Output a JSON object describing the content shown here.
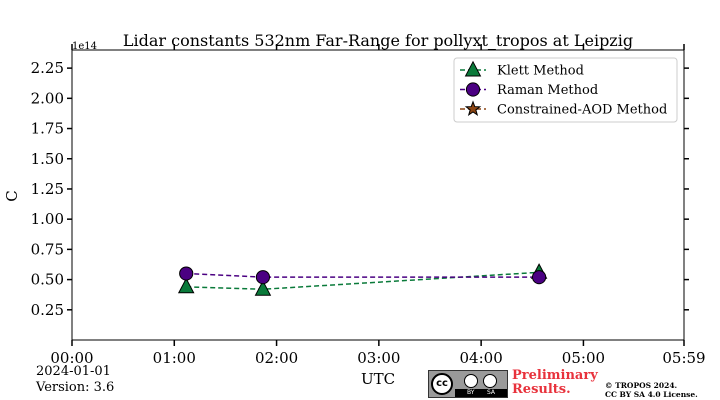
{
  "chart_data": {
    "type": "line",
    "title": "Lidar constants 532nm Far-Range for pollyxt_tropos at Leipzig",
    "xlabel": "UTC",
    "ylabel": "C",
    "y_offset_label": "1e14",
    "xlim": [
      "00:00",
      "05:59"
    ],
    "ylim": [
      0.0,
      2.4
    ],
    "x_ticks": [
      "00:00",
      "01:00",
      "02:00",
      "03:00",
      "04:00",
      "05:00",
      "05:59"
    ],
    "y_ticks": [
      "0.25",
      "0.50",
      "0.75",
      "1.00",
      "1.25",
      "1.50",
      "1.75",
      "2.00",
      "2.25"
    ],
    "legend_position": "top-right",
    "grid": false,
    "series": [
      {
        "name": "Klett Method",
        "color": "#0a7a3a",
        "marker": "triangle",
        "x": [
          "01:07",
          "01:52",
          "04:34"
        ],
        "values": [
          0.44,
          0.42,
          0.56
        ]
      },
      {
        "name": "Raman Method",
        "color": "#4b0082",
        "marker": "circle",
        "x": [
          "01:07",
          "01:52",
          "04:34"
        ],
        "values": [
          0.55,
          0.52,
          0.52
        ]
      },
      {
        "name": "Constrained-AOD Method",
        "color": "#8b4513",
        "marker": "star",
        "x": [],
        "values": []
      }
    ]
  },
  "footer": {
    "date": "2024-01-01",
    "version": "Version: 3.6",
    "license_badge": {
      "cc": "cc",
      "by": "BY",
      "sa": "SA"
    },
    "preliminary_line1": "Preliminary",
    "preliminary_line2": "Results.",
    "copyright_line1": "© TROPOS 2024.",
    "copyright_line2": "CC BY SA 4.0 License."
  }
}
